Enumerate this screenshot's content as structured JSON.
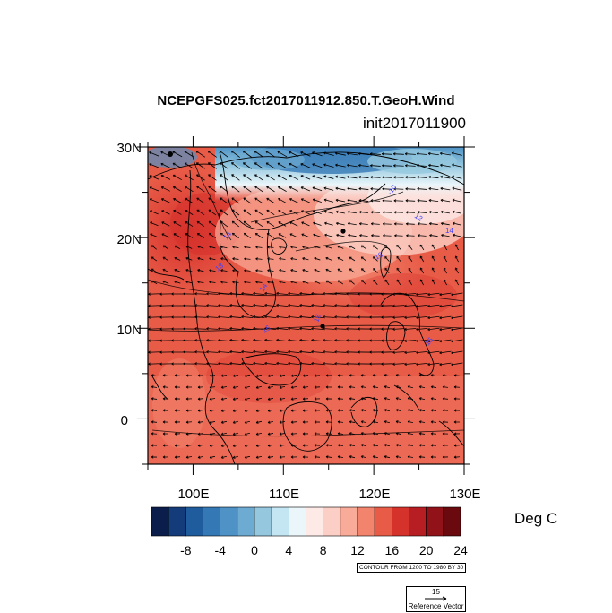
{
  "title": "NCEPGFS025.fct2017011912.850.T.GeoH.Wind",
  "subtitle": "init2017011900",
  "map": {
    "lat_ticks": [
      "30N",
      "20N",
      "10N",
      "0"
    ],
    "lon_ticks": [
      "100E",
      "110E",
      "120E",
      "130E"
    ],
    "lat_range": [
      -5,
      30
    ],
    "lon_range": [
      95,
      130
    ],
    "contour_labels": [
      "-10",
      "12",
      "14",
      "14",
      "16",
      "18",
      "14",
      "18",
      "16",
      "15",
      "18"
    ]
  },
  "colorbar": {
    "colors": [
      "#0b1d4a",
      "#143c7a",
      "#1f5c9e",
      "#3478b5",
      "#4f93c6",
      "#6eabd2",
      "#95c8df",
      "#c4e6f2",
      "#eaf6fa",
      "#fde9e6",
      "#fbcfc6",
      "#f8ab99",
      "#f2846d",
      "#e85b47",
      "#d6322c",
      "#b71e23",
      "#911219",
      "#6a0a0f"
    ],
    "tick_labels": [
      "-8",
      "-4",
      "0",
      "4",
      "8",
      "12",
      "16",
      "20",
      "24"
    ],
    "units": "Deg C"
  },
  "contour_note": "CONTOUR FROM 1200 TO 1980 BY 30",
  "reference_vector": {
    "value": "15",
    "label": "Reference Vector"
  }
}
